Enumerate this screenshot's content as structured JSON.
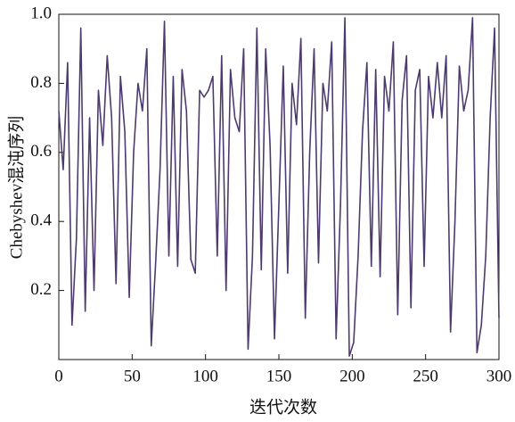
{
  "chart_data": {
    "type": "line",
    "xlabel": "迭代次数",
    "ylabel": "Chebyshev混沌序列",
    "x": [
      0,
      3,
      6,
      9,
      12,
      15,
      18,
      21,
      24,
      27,
      30,
      33,
      36,
      39,
      42,
      45,
      48,
      51,
      54,
      57,
      60,
      63,
      66,
      69,
      72,
      75,
      78,
      81,
      84,
      87,
      90,
      93,
      96,
      99,
      102,
      105,
      108,
      111,
      114,
      117,
      120,
      123,
      126,
      129,
      132,
      135,
      138,
      141,
      144,
      147,
      150,
      153,
      156,
      159,
      162,
      165,
      168,
      171,
      174,
      177,
      180,
      183,
      186,
      189,
      192,
      195,
      198,
      201,
      204,
      207,
      210,
      213,
      216,
      219,
      222,
      225,
      228,
      231,
      234,
      237,
      240,
      243,
      246,
      249,
      252,
      255,
      258,
      261,
      264,
      267,
      270,
      273,
      276,
      279,
      282,
      285,
      288,
      291,
      294,
      297,
      300
    ],
    "series": [
      {
        "name": "Chebyshev",
        "color": "#4d3a6e",
        "values": [
          0.72,
          0.55,
          0.86,
          0.1,
          0.35,
          0.96,
          0.14,
          0.7,
          0.2,
          0.78,
          0.62,
          0.88,
          0.7,
          0.22,
          0.82,
          0.66,
          0.18,
          0.6,
          0.8,
          0.72,
          0.9,
          0.04,
          0.28,
          0.55,
          0.98,
          0.3,
          0.82,
          0.27,
          0.84,
          0.72,
          0.29,
          0.25,
          0.78,
          0.76,
          0.78,
          0.82,
          0.3,
          0.88,
          0.2,
          0.84,
          0.7,
          0.66,
          0.9,
          0.03,
          0.3,
          0.96,
          0.26,
          0.9,
          0.62,
          0.06,
          0.45,
          0.85,
          0.25,
          0.8,
          0.68,
          0.93,
          0.12,
          0.6,
          0.9,
          0.28,
          0.8,
          0.72,
          0.92,
          0.06,
          0.45,
          0.99,
          0.01,
          0.05,
          0.3,
          0.66,
          0.86,
          0.27,
          0.84,
          0.24,
          0.82,
          0.72,
          0.92,
          0.13,
          0.75,
          0.88,
          0.15,
          0.78,
          0.84,
          0.27,
          0.82,
          0.7,
          0.86,
          0.7,
          0.88,
          0.08,
          0.4,
          0.85,
          0.72,
          0.78,
          0.99,
          0.02,
          0.1,
          0.3,
          0.7,
          0.96,
          0.12
        ]
      }
    ],
    "xlim": [
      0,
      300
    ],
    "xticks": [
      0,
      50,
      100,
      150,
      200,
      250,
      300
    ],
    "ylim": [
      0,
      1
    ],
    "yticks": [
      0.2,
      0.4,
      0.6,
      0.8,
      {
        "value": 1,
        "label": "1.0"
      }
    ]
  }
}
